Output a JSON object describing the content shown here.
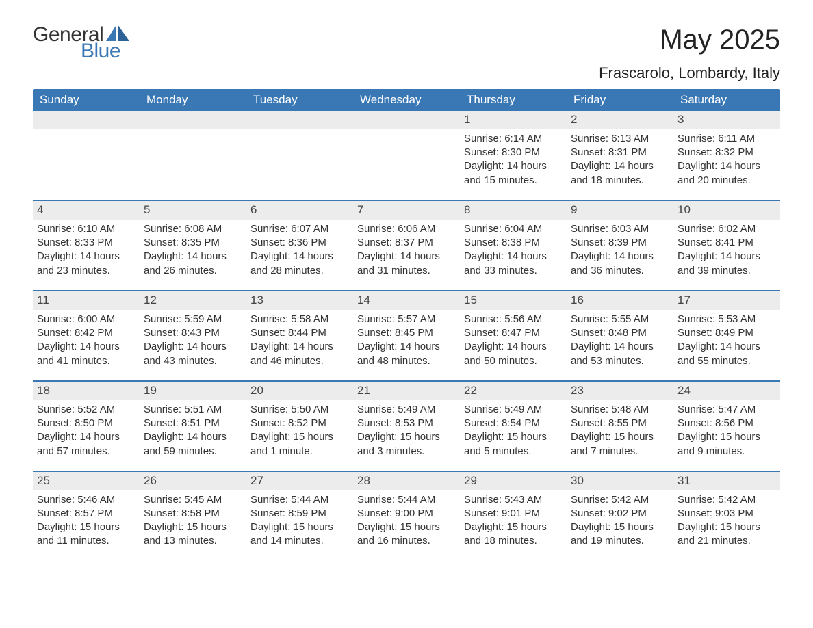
{
  "logo": {
    "general": "General",
    "blue": "Blue"
  },
  "title": "May 2025",
  "subtitle": "Frascarolo, Lombardy, Italy",
  "colors": {
    "brand": "#3a78b5",
    "header_bg": "#3a78b5",
    "header_text": "#ffffff",
    "day_stripe": "#ececec",
    "text": "#333333",
    "background": "#ffffff"
  },
  "layout": {
    "columns": 7,
    "rows": 5,
    "label_sunrise": "Sunrise: ",
    "label_sunset": "Sunset: ",
    "label_daylight": "Daylight: "
  },
  "weekdays": [
    "Sunday",
    "Monday",
    "Tuesday",
    "Wednesday",
    "Thursday",
    "Friday",
    "Saturday"
  ],
  "cells": [
    {
      "day": "",
      "sunrise": "",
      "sunset": "",
      "daylight1": "",
      "daylight2": ""
    },
    {
      "day": "",
      "sunrise": "",
      "sunset": "",
      "daylight1": "",
      "daylight2": ""
    },
    {
      "day": "",
      "sunrise": "",
      "sunset": "",
      "daylight1": "",
      "daylight2": ""
    },
    {
      "day": "",
      "sunrise": "",
      "sunset": "",
      "daylight1": "",
      "daylight2": ""
    },
    {
      "day": "1",
      "sunrise": "6:14 AM",
      "sunset": "8:30 PM",
      "daylight1": "14 hours",
      "daylight2": "and 15 minutes."
    },
    {
      "day": "2",
      "sunrise": "6:13 AM",
      "sunset": "8:31 PM",
      "daylight1": "14 hours",
      "daylight2": "and 18 minutes."
    },
    {
      "day": "3",
      "sunrise": "6:11 AM",
      "sunset": "8:32 PM",
      "daylight1": "14 hours",
      "daylight2": "and 20 minutes."
    },
    {
      "day": "4",
      "sunrise": "6:10 AM",
      "sunset": "8:33 PM",
      "daylight1": "14 hours",
      "daylight2": "and 23 minutes."
    },
    {
      "day": "5",
      "sunrise": "6:08 AM",
      "sunset": "8:35 PM",
      "daylight1": "14 hours",
      "daylight2": "and 26 minutes."
    },
    {
      "day": "6",
      "sunrise": "6:07 AM",
      "sunset": "8:36 PM",
      "daylight1": "14 hours",
      "daylight2": "and 28 minutes."
    },
    {
      "day": "7",
      "sunrise": "6:06 AM",
      "sunset": "8:37 PM",
      "daylight1": "14 hours",
      "daylight2": "and 31 minutes."
    },
    {
      "day": "8",
      "sunrise": "6:04 AM",
      "sunset": "8:38 PM",
      "daylight1": "14 hours",
      "daylight2": "and 33 minutes."
    },
    {
      "day": "9",
      "sunrise": "6:03 AM",
      "sunset": "8:39 PM",
      "daylight1": "14 hours",
      "daylight2": "and 36 minutes."
    },
    {
      "day": "10",
      "sunrise": "6:02 AM",
      "sunset": "8:41 PM",
      "daylight1": "14 hours",
      "daylight2": "and 39 minutes."
    },
    {
      "day": "11",
      "sunrise": "6:00 AM",
      "sunset": "8:42 PM",
      "daylight1": "14 hours",
      "daylight2": "and 41 minutes."
    },
    {
      "day": "12",
      "sunrise": "5:59 AM",
      "sunset": "8:43 PM",
      "daylight1": "14 hours",
      "daylight2": "and 43 minutes."
    },
    {
      "day": "13",
      "sunrise": "5:58 AM",
      "sunset": "8:44 PM",
      "daylight1": "14 hours",
      "daylight2": "and 46 minutes."
    },
    {
      "day": "14",
      "sunrise": "5:57 AM",
      "sunset": "8:45 PM",
      "daylight1": "14 hours",
      "daylight2": "and 48 minutes."
    },
    {
      "day": "15",
      "sunrise": "5:56 AM",
      "sunset": "8:47 PM",
      "daylight1": "14 hours",
      "daylight2": "and 50 minutes."
    },
    {
      "day": "16",
      "sunrise": "5:55 AM",
      "sunset": "8:48 PM",
      "daylight1": "14 hours",
      "daylight2": "and 53 minutes."
    },
    {
      "day": "17",
      "sunrise": "5:53 AM",
      "sunset": "8:49 PM",
      "daylight1": "14 hours",
      "daylight2": "and 55 minutes."
    },
    {
      "day": "18",
      "sunrise": "5:52 AM",
      "sunset": "8:50 PM",
      "daylight1": "14 hours",
      "daylight2": "and 57 minutes."
    },
    {
      "day": "19",
      "sunrise": "5:51 AM",
      "sunset": "8:51 PM",
      "daylight1": "14 hours",
      "daylight2": "and 59 minutes."
    },
    {
      "day": "20",
      "sunrise": "5:50 AM",
      "sunset": "8:52 PM",
      "daylight1": "15 hours",
      "daylight2": "and 1 minute."
    },
    {
      "day": "21",
      "sunrise": "5:49 AM",
      "sunset": "8:53 PM",
      "daylight1": "15 hours",
      "daylight2": "and 3 minutes."
    },
    {
      "day": "22",
      "sunrise": "5:49 AM",
      "sunset": "8:54 PM",
      "daylight1": "15 hours",
      "daylight2": "and 5 minutes."
    },
    {
      "day": "23",
      "sunrise": "5:48 AM",
      "sunset": "8:55 PM",
      "daylight1": "15 hours",
      "daylight2": "and 7 minutes."
    },
    {
      "day": "24",
      "sunrise": "5:47 AM",
      "sunset": "8:56 PM",
      "daylight1": "15 hours",
      "daylight2": "and 9 minutes."
    },
    {
      "day": "25",
      "sunrise": "5:46 AM",
      "sunset": "8:57 PM",
      "daylight1": "15 hours",
      "daylight2": "and 11 minutes."
    },
    {
      "day": "26",
      "sunrise": "5:45 AM",
      "sunset": "8:58 PM",
      "daylight1": "15 hours",
      "daylight2": "and 13 minutes."
    },
    {
      "day": "27",
      "sunrise": "5:44 AM",
      "sunset": "8:59 PM",
      "daylight1": "15 hours",
      "daylight2": "and 14 minutes."
    },
    {
      "day": "28",
      "sunrise": "5:44 AM",
      "sunset": "9:00 PM",
      "daylight1": "15 hours",
      "daylight2": "and 16 minutes."
    },
    {
      "day": "29",
      "sunrise": "5:43 AM",
      "sunset": "9:01 PM",
      "daylight1": "15 hours",
      "daylight2": "and 18 minutes."
    },
    {
      "day": "30",
      "sunrise": "5:42 AM",
      "sunset": "9:02 PM",
      "daylight1": "15 hours",
      "daylight2": "and 19 minutes."
    },
    {
      "day": "31",
      "sunrise": "5:42 AM",
      "sunset": "9:03 PM",
      "daylight1": "15 hours",
      "daylight2": "and 21 minutes."
    }
  ]
}
